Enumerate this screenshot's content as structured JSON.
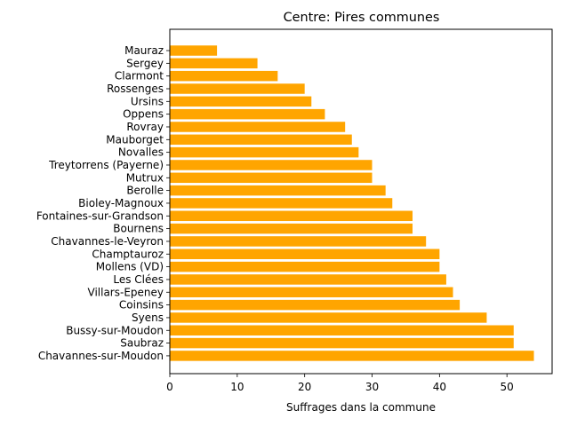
{
  "chart_data": {
    "type": "bar",
    "orientation": "horizontal",
    "title": "Centre: Pires communes",
    "xlabel": "Suffrages dans la commune",
    "ylabel": "",
    "xlim": [
      0,
      56.7
    ],
    "xticks": [
      0,
      10,
      20,
      30,
      40,
      50
    ],
    "grid": false,
    "bar_color": "#ffa500",
    "categories": [
      "Mauraz",
      "Sergey",
      "Clarmont",
      "Rossenges",
      "Ursins",
      "Oppens",
      "Rovray",
      "Mauborget",
      "Novalles",
      "Treytorrens (Payerne)",
      "Mutrux",
      "Berolle",
      "Bioley-Magnoux",
      "Fontaines-sur-Grandson",
      "Bournens",
      "Chavannes-le-Veyron",
      "Champtauroz",
      "Mollens (VD)",
      "Les Clées",
      "Villars-Epeney",
      "Coinsins",
      "Syens",
      "Bussy-sur-Moudon",
      "Saubraz",
      "Chavannes-sur-Moudon"
    ],
    "values": [
      7,
      13,
      16,
      20,
      21,
      23,
      26,
      27,
      28,
      30,
      30,
      32,
      33,
      36,
      36,
      38,
      40,
      40,
      41,
      42,
      43,
      47,
      51,
      51,
      54
    ]
  }
}
